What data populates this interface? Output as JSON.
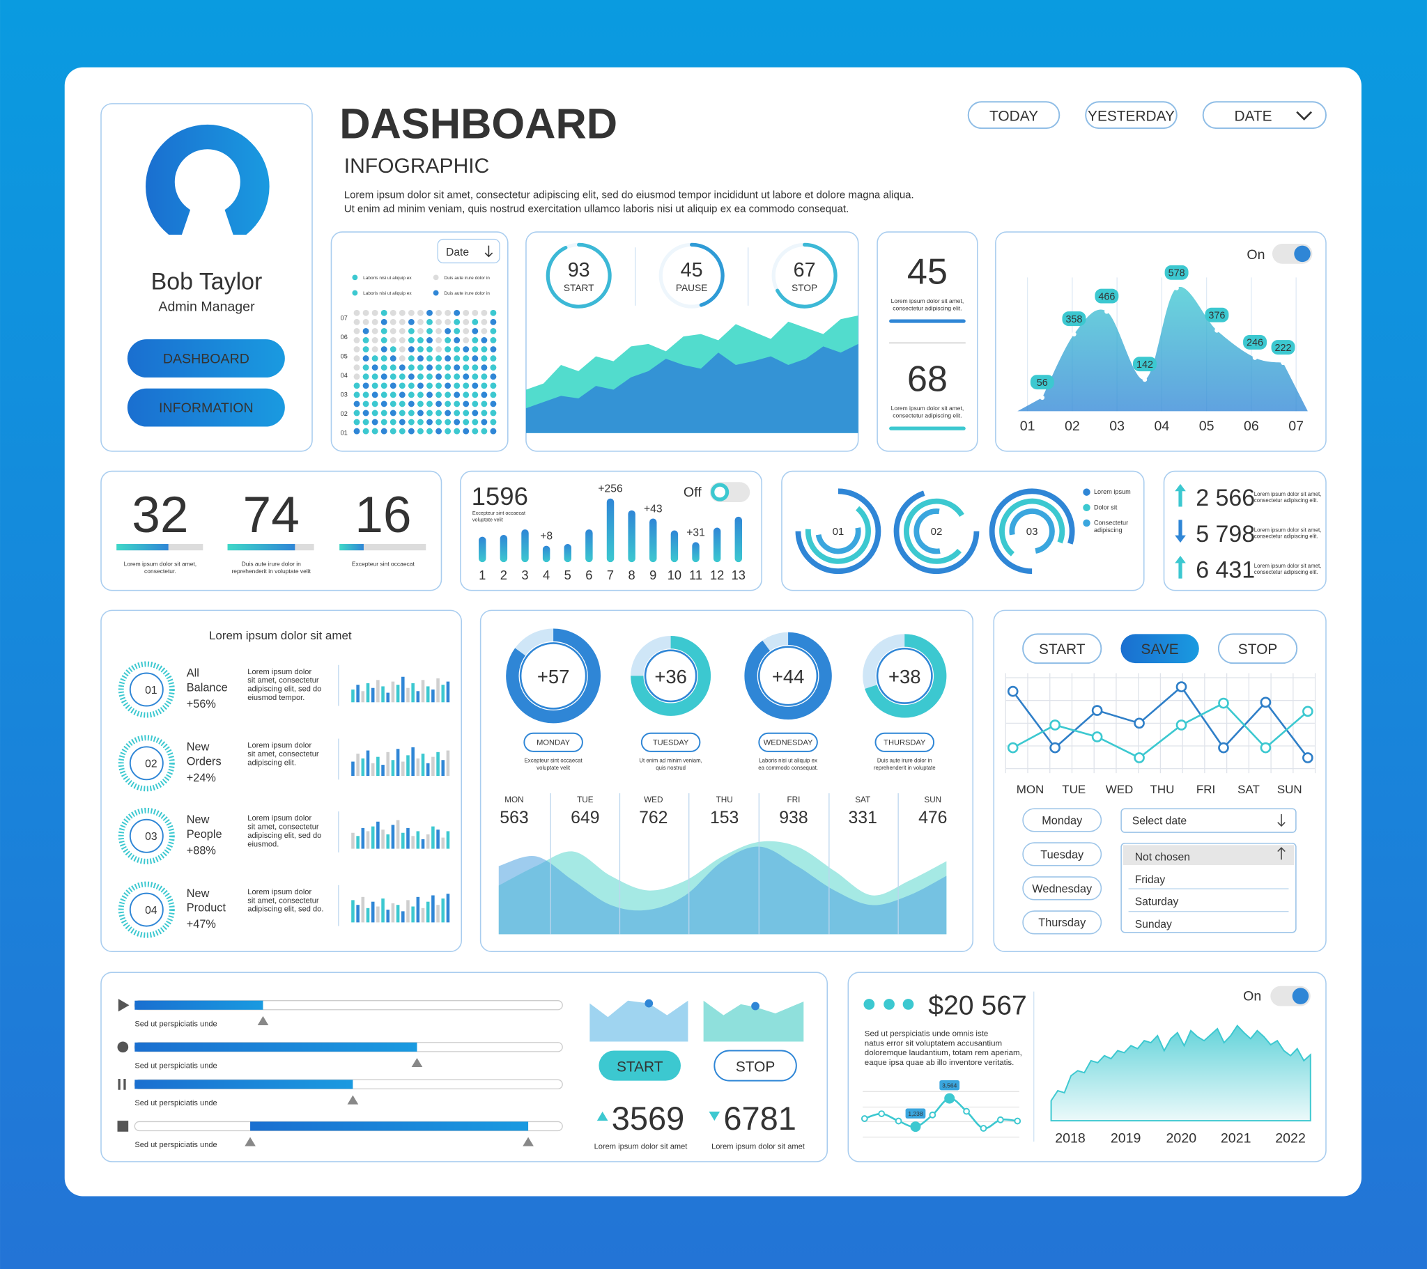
{
  "header": {
    "title": "DASHBOARD",
    "subtitle": "INFOGRAPHIC",
    "description": [
      "Lorem ipsum dolor sit amet, consectetur adipiscing elit, sed do eiusmod tempor incididunt ut labore et dolore magna aliqua.",
      "Ut enim ad minim veniam, quis nostrud exercitation ullamco laboris nisi ut aliquip ex ea commodo consequat."
    ],
    "filters": [
      "TODAY",
      "YESTERDAY",
      "DATE"
    ]
  },
  "profile": {
    "name": "Bob Taylor",
    "role": "Admin Manager",
    "buttons": [
      "DASHBOARD",
      "INFORMATION"
    ]
  },
  "dot_matrix": {
    "dropdown": "Date",
    "legend": [
      "Laboris nisi ut aliquip ex",
      "Duis aute irure dolor in",
      "Laboris nisi ut aliquip ex",
      "Duis aute irure dolor in"
    ],
    "rows": [
      "07",
      "06",
      "05",
      "04",
      "03",
      "02",
      "01"
    ],
    "values": [
      6,
      12,
      9,
      14,
      10,
      8,
      13,
      11,
      14,
      9,
      12,
      14,
      10,
      13,
      11,
      14
    ],
    "ylim": [
      0,
      14
    ]
  },
  "gauges": {
    "items": [
      {
        "value": 93,
        "label": "START"
      },
      {
        "value": 45,
        "label": "PAUSE"
      },
      {
        "value": 67,
        "label": "STOP"
      }
    ],
    "area": {
      "ylim": [
        0,
        100
      ],
      "series": [
        {
          "color": "#3fd8c8",
          "values": [
            35,
            40,
            55,
            50,
            62,
            58,
            70,
            72,
            66,
            78,
            80,
            75,
            88,
            82,
            76,
            90,
            85,
            80,
            92,
            95
          ]
        },
        {
          "color": "#2f86d6",
          "values": [
            20,
            25,
            30,
            28,
            38,
            35,
            45,
            50,
            60,
            55,
            52,
            65,
            55,
            58,
            62,
            55,
            60,
            70,
            65,
            72
          ]
        }
      ]
    }
  },
  "mini_stats": [
    {
      "value": 45,
      "text": [
        "Lorem ipsum dolor sit amet,",
        "consectetur adipiscing elit."
      ],
      "color": "#2f86d6"
    },
    {
      "value": 68,
      "text": [
        "Lorem ipsum dolor sit amet,",
        "consectetur adipiscing elit."
      ],
      "color": "#3cc8d0"
    }
  ],
  "area_chart": {
    "toggle": "On",
    "categories": [
      "01",
      "02",
      "03",
      "04",
      "05",
      "06",
      "07"
    ],
    "peaks": {
      "x": [
        1.33,
        2.04,
        2.77,
        3.62,
        4.33,
        5.23,
        6.08,
        6.71
      ],
      "values": [
        56,
        358,
        466,
        142,
        578,
        376,
        246,
        222
      ]
    },
    "ylim": [
      0,
      650
    ]
  },
  "kpis": [
    {
      "value": 32,
      "progress": 60,
      "text": [
        "Lorem ipsum dolor sit amet,",
        "consectetur."
      ]
    },
    {
      "value": 74,
      "progress": 78,
      "text": [
        "Duis aute irure dolor in",
        "reprehenderit in voluptate velit"
      ]
    },
    {
      "value": 16,
      "progress": 28,
      "text": [
        "Excepteur sint occaecat"
      ]
    }
  ],
  "bar_chart": {
    "total": 1596,
    "caption": [
      "Excepteur sint occaecat",
      "voluptate velit"
    ],
    "toggle": "Off",
    "categories": [
      "1",
      "2",
      "3",
      "4",
      "5",
      "6",
      "7",
      "8",
      "9",
      "10",
      "11",
      "12",
      "13"
    ],
    "values": [
      28,
      30,
      36,
      18,
      20,
      36,
      70,
      57,
      48,
      35,
      22,
      38,
      50
    ],
    "annotations": [
      null,
      null,
      null,
      "+8",
      null,
      null,
      "+256",
      null,
      "+43",
      null,
      "+31",
      null,
      null
    ],
    "ylim": [
      0,
      80
    ]
  },
  "rings": {
    "items": [
      {
        "label": "01",
        "values": [
          75,
          65,
          50
        ]
      },
      {
        "label": "02",
        "values": [
          70,
          80,
          55
        ]
      },
      {
        "label": "03",
        "values": [
          80,
          70,
          75
        ]
      }
    ],
    "legend": [
      [
        "Lorem ipsum"
      ],
      [
        "Dolor sit"
      ],
      [
        "Consectetur",
        "adipiscing"
      ]
    ]
  },
  "stats": [
    {
      "value": "2 566",
      "trend": "up",
      "text": [
        "Lorem ipsum dolor sit amet,",
        "consectetur adipiscing elit."
      ]
    },
    {
      "value": "5 798",
      "trend": "down",
      "text": [
        "Lorem ipsum dolor sit amet,",
        "consectetur adipiscing elit."
      ]
    },
    {
      "value": "6 431",
      "trend": "up",
      "text": [
        "Lorem ipsum dolor sit amet,",
        "consectetur adipiscing elit."
      ]
    }
  ],
  "list_panel": {
    "title": "Lorem ipsum dolor sit amet",
    "ylim": [
      0,
      100
    ],
    "items": [
      {
        "badge": "01",
        "name": [
          "All",
          "Balance"
        ],
        "change": "+56%",
        "text": [
          "Lorem ipsum dolor",
          "sit amet, consectetur",
          "adipiscing elit, sed do",
          "eiusmod tempor."
        ],
        "values": [
          40,
          55,
          35,
          60,
          45,
          70,
          50,
          30,
          65,
          55,
          80,
          45,
          60,
          35,
          70,
          50,
          40,
          75,
          55,
          65
        ]
      },
      {
        "badge": "02",
        "name": [
          "New",
          "Orders"
        ],
        "change": "+24%",
        "text": [
          "Lorem ipsum dolor",
          "sit amet, consectetur",
          "adipiscing elit."
        ],
        "values": [
          45,
          70,
          55,
          80,
          40,
          60,
          35,
          75,
          50,
          85,
          45,
          65,
          90,
          55,
          70,
          40,
          60,
          75,
          50,
          80
        ]
      },
      {
        "badge": "03",
        "name": [
          "New",
          "People"
        ],
        "change": "+88%",
        "text": [
          "Lorem ipsum dolor",
          "sit amet, consectetur",
          "adipiscing elit, sed do",
          "eiusmod."
        ],
        "values": [
          50,
          40,
          65,
          55,
          70,
          85,
          60,
          45,
          75,
          90,
          50,
          65,
          40,
          55,
          30,
          45,
          70,
          60,
          35,
          55
        ]
      },
      {
        "badge": "04",
        "name": [
          "New",
          "Product"
        ],
        "change": "+47%",
        "text": [
          "Lorem ipsum dolor",
          "sit amet, consectetur",
          "adipiscing elit, sed do."
        ],
        "values": [
          70,
          55,
          80,
          45,
          65,
          50,
          75,
          40,
          60,
          55,
          35,
          70,
          50,
          80,
          45,
          65,
          85,
          55,
          75,
          90
        ]
      }
    ]
  },
  "weekday_donuts": [
    {
      "value": "+57",
      "day": "MONDAY",
      "progress": 85,
      "text": [
        "Excepteur sint occaecat",
        "voluptate velit"
      ]
    },
    {
      "value": "+36",
      "day": "TUESDAY",
      "progress": 75,
      "text": [
        "Ut enim ad minim veniam,",
        "quis nostrud"
      ]
    },
    {
      "value": "+44",
      "day": "WEDNESDAY",
      "progress": 90,
      "text": [
        "Laboris nisi ut aliquip ex",
        "ea commodo consequat."
      ]
    },
    {
      "value": "+38",
      "day": "THURSDAY",
      "progress": 70,
      "text": [
        "Duis aute irure dolor in",
        "reprehenderit in voluptate"
      ]
    }
  ],
  "weekly": {
    "categories": [
      "MON",
      "TUE",
      "WED",
      "THU",
      "FRI",
      "SAT",
      "SUN"
    ],
    "values": [
      563,
      649,
      762,
      153,
      938,
      331,
      476
    ],
    "ylim": [
      0,
      100
    ],
    "waves": [
      {
        "color": "#7fe0d8",
        "values": [
          50,
          70,
          85,
          60,
          45,
          55,
          80,
          95,
          90,
          65,
          40,
          55,
          75
        ]
      },
      {
        "color": "#4fa3e0",
        "values": [
          70,
          80,
          55,
          30,
          25,
          40,
          75,
          90,
          70,
          45,
          30,
          40,
          60
        ]
      }
    ]
  },
  "line_panel": {
    "buttons": [
      "START",
      "SAVE",
      "STOP"
    ],
    "day_labels": [
      "MON",
      "TUE",
      "WED",
      "THU",
      "FRI",
      "SAT",
      "SUN"
    ],
    "ylim": [
      0,
      100
    ],
    "series": [
      {
        "color": "#2f7fc8",
        "values": [
          85,
          23,
          64,
          50,
          90,
          23,
          73,
          12
        ]
      },
      {
        "color": "#3cc8d0",
        "values": [
          23,
          48,
          35,
          12,
          48,
          72,
          23,
          63
        ]
      }
    ],
    "day_options": [
      "Monday",
      "Tuesday",
      "Wednesday",
      "Thursday"
    ],
    "select": {
      "placeholder": "Select date",
      "options": [
        "Not chosen",
        "Friday",
        "Saturday",
        "Sunday"
      ]
    }
  },
  "sliders": [
    {
      "text": "Sed ut perspiciatis unde",
      "start": 0,
      "end": 30
    },
    {
      "text": "Sed ut perspiciatis unde",
      "start": 0,
      "end": 66
    },
    {
      "text": "Sed ut perspiciatis unde",
      "start": 0,
      "end": 51
    },
    {
      "text": "Sed ut perspiciatis unde",
      "start": 27,
      "end": 92
    }
  ],
  "controls": {
    "buttons": [
      "START",
      "STOP"
    ],
    "values": [
      {
        "value": 3569,
        "trend": "up",
        "text": "Lorem ipsum dolor sit amet"
      },
      {
        "value": 6781,
        "trend": "down",
        "text": "Lorem ipsum dolor sit amet"
      }
    ]
  },
  "finance": {
    "amount": "$20 567",
    "text": [
      "Sed ut perspiciatis unde omnis iste",
      "natus error sit voluptatem accusantium",
      "doloremque laudantium, totam rem aperiam,",
      "eaque ipsa quae ab illo inventore veritatis."
    ],
    "mini_line": {
      "ylim": [
        0,
        4500
      ],
      "values": [
        1900,
        2300,
        1700,
        1238,
        2200,
        3564,
        2500,
        1100,
        1800,
        1700
      ],
      "value_labels": [
        null,
        null,
        null,
        "1,238",
        null,
        "3,564",
        null,
        null,
        null,
        null
      ]
    },
    "toggle": "On",
    "categories": [
      "2018",
      "2019",
      "2020",
      "2021",
      "2022"
    ],
    "ylim": [
      0,
      100
    ],
    "values": [
      20,
      30,
      28,
      45,
      50,
      48,
      60,
      58,
      65,
      62,
      70,
      68,
      75,
      72,
      80,
      78,
      85,
      70,
      82,
      88,
      75,
      90,
      84,
      80,
      86,
      92,
      78,
      85,
      95,
      88,
      82,
      90,
      84,
      76,
      80,
      70,
      65,
      72,
      60,
      66
    ]
  }
}
